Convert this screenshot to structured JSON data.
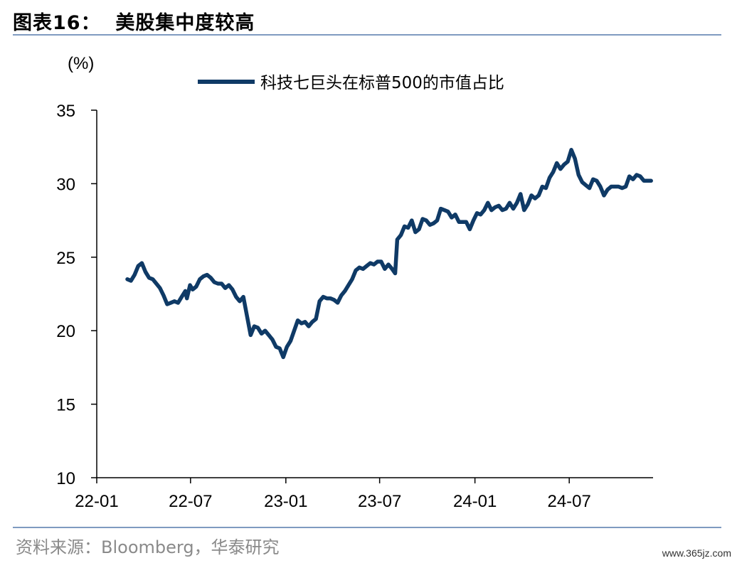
{
  "figure": {
    "title": "图表16：  美股集中度较高",
    "source": "资料来源：Bloomberg，华泰研究",
    "watermark": "www.365jz.com"
  },
  "chart_data": {
    "type": "line",
    "ylabel": "(%)",
    "ylim": [
      10,
      35
    ],
    "yticks": [
      10,
      15,
      20,
      25,
      30,
      35
    ],
    "xticks": [
      "22-01",
      "22-07",
      "23-01",
      "23-07",
      "24-01",
      "24-07"
    ],
    "xlim": [
      "2022-01",
      "2024-12"
    ],
    "grid": false,
    "legend_position": "top-center",
    "color": "#0f3a66",
    "series": [
      {
        "name": "科技七巨头在标普500的市值占比",
        "points": [
          [
            "2022-03-01",
            23.5
          ],
          [
            "2022-03-08",
            23.4
          ],
          [
            "2022-03-15",
            23.8
          ],
          [
            "2022-03-22",
            24.4
          ],
          [
            "2022-03-29",
            24.6
          ],
          [
            "2022-04-05",
            24.0
          ],
          [
            "2022-04-12",
            23.6
          ],
          [
            "2022-04-19",
            23.5
          ],
          [
            "2022-04-26",
            23.2
          ],
          [
            "2022-05-03",
            22.9
          ],
          [
            "2022-05-10",
            22.4
          ],
          [
            "2022-05-17",
            21.8
          ],
          [
            "2022-05-24",
            21.9
          ],
          [
            "2022-05-31",
            22.0
          ],
          [
            "2022-06-07",
            21.9
          ],
          [
            "2022-06-14",
            22.3
          ],
          [
            "2022-06-21",
            22.7
          ],
          [
            "2022-06-24",
            22.2
          ],
          [
            "2022-06-30",
            23.1
          ],
          [
            "2022-07-05",
            22.8
          ],
          [
            "2022-07-12",
            23.0
          ],
          [
            "2022-07-19",
            23.5
          ],
          [
            "2022-07-26",
            23.7
          ],
          [
            "2022-08-02",
            23.8
          ],
          [
            "2022-08-09",
            23.6
          ],
          [
            "2022-08-16",
            23.3
          ],
          [
            "2022-08-23",
            23.2
          ],
          [
            "2022-08-30",
            23.2
          ],
          [
            "2022-09-06",
            22.9
          ],
          [
            "2022-09-13",
            23.1
          ],
          [
            "2022-09-20",
            22.8
          ],
          [
            "2022-09-27",
            22.3
          ],
          [
            "2022-10-04",
            22.0
          ],
          [
            "2022-10-11",
            22.3
          ],
          [
            "2022-10-18",
            21.0
          ],
          [
            "2022-10-25",
            19.7
          ],
          [
            "2022-11-01",
            20.3
          ],
          [
            "2022-11-08",
            20.2
          ],
          [
            "2022-11-15",
            19.8
          ],
          [
            "2022-11-22",
            20.0
          ],
          [
            "2022-11-29",
            19.7
          ],
          [
            "2022-12-06",
            19.4
          ],
          [
            "2022-12-13",
            18.9
          ],
          [
            "2022-12-20",
            18.8
          ],
          [
            "2022-12-27",
            18.2
          ],
          [
            "2023-01-03",
            18.9
          ],
          [
            "2023-01-10",
            19.3
          ],
          [
            "2023-01-17",
            20.0
          ],
          [
            "2023-01-24",
            20.7
          ],
          [
            "2023-01-31",
            20.5
          ],
          [
            "2023-02-07",
            20.6
          ],
          [
            "2023-02-14",
            20.3
          ],
          [
            "2023-02-21",
            20.6
          ],
          [
            "2023-02-28",
            20.8
          ],
          [
            "2023-03-07",
            22.0
          ],
          [
            "2023-03-14",
            22.3
          ],
          [
            "2023-03-21",
            22.2
          ],
          [
            "2023-03-28",
            22.2
          ],
          [
            "2023-04-04",
            22.1
          ],
          [
            "2023-04-11",
            21.9
          ],
          [
            "2023-04-18",
            22.4
          ],
          [
            "2023-04-25",
            22.7
          ],
          [
            "2023-05-02",
            23.1
          ],
          [
            "2023-05-09",
            23.5
          ],
          [
            "2023-05-16",
            24.1
          ],
          [
            "2023-05-23",
            24.3
          ],
          [
            "2023-05-30",
            24.2
          ],
          [
            "2023-06-06",
            24.4
          ],
          [
            "2023-06-13",
            24.6
          ],
          [
            "2023-06-20",
            24.5
          ],
          [
            "2023-06-27",
            24.7
          ],
          [
            "2023-07-04",
            24.7
          ],
          [
            "2023-07-11",
            24.2
          ],
          [
            "2023-07-18",
            24.5
          ],
          [
            "2023-07-25",
            24.2
          ],
          [
            "2023-07-31",
            23.9
          ],
          [
            "2023-08-04",
            26.2
          ],
          [
            "2023-08-11",
            26.5
          ],
          [
            "2023-08-18",
            27.1
          ],
          [
            "2023-08-25",
            27.0
          ],
          [
            "2023-09-01",
            27.5
          ],
          [
            "2023-09-08",
            26.7
          ],
          [
            "2023-09-15",
            26.9
          ],
          [
            "2023-09-22",
            27.6
          ],
          [
            "2023-09-29",
            27.5
          ],
          [
            "2023-10-06",
            27.2
          ],
          [
            "2023-10-13",
            27.3
          ],
          [
            "2023-10-20",
            27.5
          ],
          [
            "2023-10-27",
            28.3
          ],
          [
            "2023-11-03",
            28.2
          ],
          [
            "2023-11-10",
            28.1
          ],
          [
            "2023-11-17",
            27.7
          ],
          [
            "2023-11-24",
            27.9
          ],
          [
            "2023-12-01",
            27.4
          ],
          [
            "2023-12-08",
            27.4
          ],
          [
            "2023-12-15",
            27.4
          ],
          [
            "2023-12-22",
            26.9
          ],
          [
            "2023-12-29",
            27.5
          ],
          [
            "2024-01-05",
            28.0
          ],
          [
            "2024-01-12",
            27.9
          ],
          [
            "2024-01-19",
            28.2
          ],
          [
            "2024-01-26",
            28.7
          ],
          [
            "2024-02-02",
            28.2
          ],
          [
            "2024-02-09",
            28.4
          ],
          [
            "2024-02-16",
            28.5
          ],
          [
            "2024-02-23",
            28.2
          ],
          [
            "2024-03-01",
            28.3
          ],
          [
            "2024-03-08",
            28.7
          ],
          [
            "2024-03-15",
            28.3
          ],
          [
            "2024-03-22",
            28.7
          ],
          [
            "2024-03-29",
            29.3
          ],
          [
            "2024-04-05",
            28.2
          ],
          [
            "2024-04-12",
            28.6
          ],
          [
            "2024-04-19",
            29.2
          ],
          [
            "2024-04-26",
            29.0
          ],
          [
            "2024-05-03",
            29.2
          ],
          [
            "2024-05-10",
            29.8
          ],
          [
            "2024-05-17",
            29.7
          ],
          [
            "2024-05-24",
            30.4
          ],
          [
            "2024-05-31",
            30.8
          ],
          [
            "2024-06-07",
            31.4
          ],
          [
            "2024-06-14",
            31.0
          ],
          [
            "2024-06-21",
            31.3
          ],
          [
            "2024-06-28",
            31.5
          ],
          [
            "2024-07-05",
            32.3
          ],
          [
            "2024-07-12",
            31.7
          ],
          [
            "2024-07-19",
            30.6
          ],
          [
            "2024-07-26",
            30.1
          ],
          [
            "2024-08-02",
            29.9
          ],
          [
            "2024-08-09",
            29.7
          ],
          [
            "2024-08-16",
            30.3
          ],
          [
            "2024-08-23",
            30.2
          ],
          [
            "2024-08-30",
            29.8
          ],
          [
            "2024-09-06",
            29.2
          ],
          [
            "2024-09-13",
            29.6
          ],
          [
            "2024-09-20",
            29.8
          ],
          [
            "2024-09-27",
            29.8
          ],
          [
            "2024-10-04",
            29.8
          ],
          [
            "2024-10-11",
            29.7
          ],
          [
            "2024-10-18",
            29.8
          ],
          [
            "2024-10-25",
            30.5
          ],
          [
            "2024-11-01",
            30.3
          ],
          [
            "2024-11-08",
            30.6
          ],
          [
            "2024-11-15",
            30.5
          ],
          [
            "2024-11-22",
            30.2
          ],
          [
            "2024-11-29",
            30.2
          ],
          [
            "2024-12-06",
            30.2
          ]
        ]
      }
    ]
  }
}
